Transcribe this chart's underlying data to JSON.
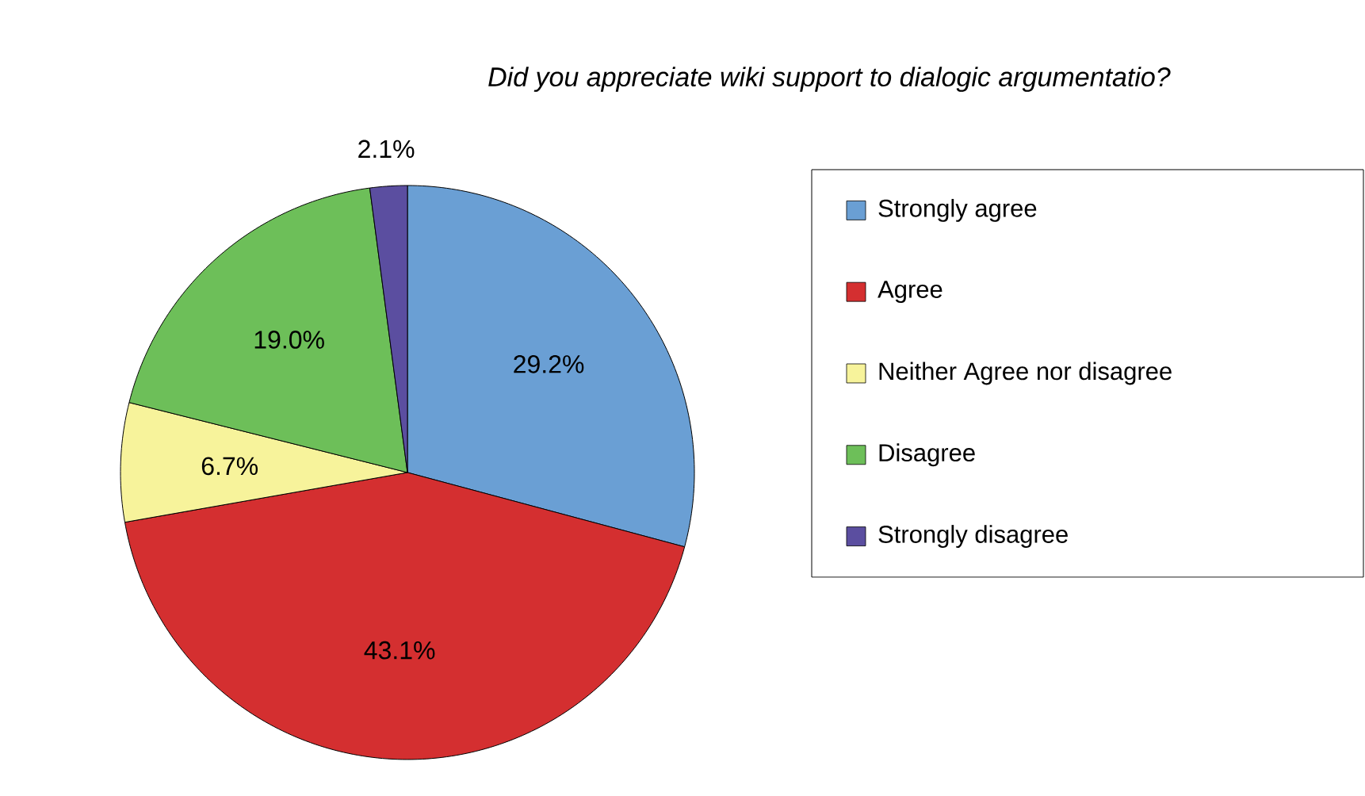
{
  "chart_data": {
    "type": "pie",
    "title": "Did you appreciate wiki support to dialogic argumentatio?",
    "categories": [
      "Strongly agree",
      "Agree",
      "Neither Agree nor disagree",
      "Disagree",
      "Strongly disagree"
    ],
    "values": [
      29.2,
      43.1,
      6.7,
      19.0,
      2.1
    ],
    "value_labels": [
      "29.2%",
      "43.1%",
      "6.7%",
      "19.0%",
      "2.1%"
    ],
    "colors": [
      "#6a9fd4",
      "#d42f30",
      "#f7f39b",
      "#6dbf59",
      "#5b4ea0"
    ],
    "legend": "right"
  }
}
